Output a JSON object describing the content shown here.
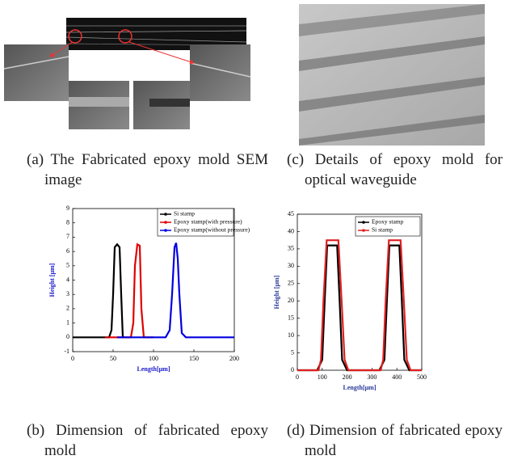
{
  "images": [
    {
      "caption": "(a) The Fabricated epoxy mold SEM image"
    },
    {
      "caption": "(c) Details of epoxy mold for optical waveguide"
    }
  ],
  "chart_data": [
    {
      "type": "line",
      "caption": "(b) Dimension of fabricated epoxy mold",
      "xlabel": "Length[μm]",
      "ylabel": "Height [μm]",
      "label_color": "#1a1acc",
      "xlim": [
        0,
        200
      ],
      "ylim": [
        -1,
        9
      ],
      "xticks": [
        0,
        50,
        100,
        150,
        200
      ],
      "yticks": [
        -1,
        0,
        1,
        2,
        3,
        4,
        5,
        6,
        7,
        8,
        9
      ],
      "legend": "upper right",
      "series": [
        {
          "name": "Si stamp",
          "color": "#000000",
          "x": [
            0,
            45,
            48,
            50,
            52,
            55,
            58,
            60,
            62,
            65
          ],
          "values": [
            0,
            0,
            0.5,
            3,
            6.3,
            6.5,
            6.3,
            3,
            0,
            0
          ]
        },
        {
          "name": "Epoxy stamp(with pressure)",
          "color": "#e00000",
          "x": [
            40,
            72,
            75,
            77,
            80,
            83,
            85,
            88,
            100
          ],
          "values": [
            0,
            0,
            1,
            5,
            6.5,
            6.4,
            2,
            0,
            0
          ]
        },
        {
          "name": "Epoxy stamp(without pressure)",
          "color": "#0000e0",
          "x": [
            55,
            115,
            120,
            123,
            126,
            128,
            130,
            132,
            135,
            140,
            200
          ],
          "values": [
            0,
            0,
            0.5,
            3,
            6.3,
            6.6,
            5.5,
            3,
            0.3,
            0,
            0
          ]
        }
      ]
    },
    {
      "type": "line",
      "caption": "(d) Dimension of fabricated epoxy mold",
      "xlabel": "Length[μm]",
      "ylabel": "Height [μm]",
      "label_color": "#2a3a9a",
      "xlim": [
        0,
        500
      ],
      "ylim": [
        0,
        45
      ],
      "xticks": [
        0,
        100,
        200,
        300,
        400,
        500
      ],
      "yticks": [
        0,
        5,
        10,
        15,
        20,
        25,
        30,
        35,
        40,
        45
      ],
      "legend": "upper right",
      "series": [
        {
          "name": "Epoxy stamp",
          "color": "#000000",
          "x": [
            0,
            80,
            100,
            110,
            120,
            160,
            170,
            180,
            200,
            330,
            350,
            360,
            370,
            410,
            420,
            430,
            450,
            500
          ],
          "values": [
            0,
            0,
            3,
            20,
            36,
            36,
            20,
            3,
            0,
            0,
            3,
            20,
            36,
            36,
            20,
            3,
            0,
            0
          ]
        },
        {
          "name": "Si stamp",
          "color": "#e02020",
          "x": [
            0,
            85,
            95,
            105,
            118,
            165,
            178,
            190,
            205,
            335,
            345,
            355,
            368,
            415,
            428,
            440,
            455,
            500
          ],
          "values": [
            0,
            0,
            3,
            20,
            37.5,
            37.5,
            20,
            3,
            0,
            0,
            3,
            20,
            37.5,
            37.5,
            20,
            3,
            0,
            0
          ]
        }
      ]
    }
  ]
}
